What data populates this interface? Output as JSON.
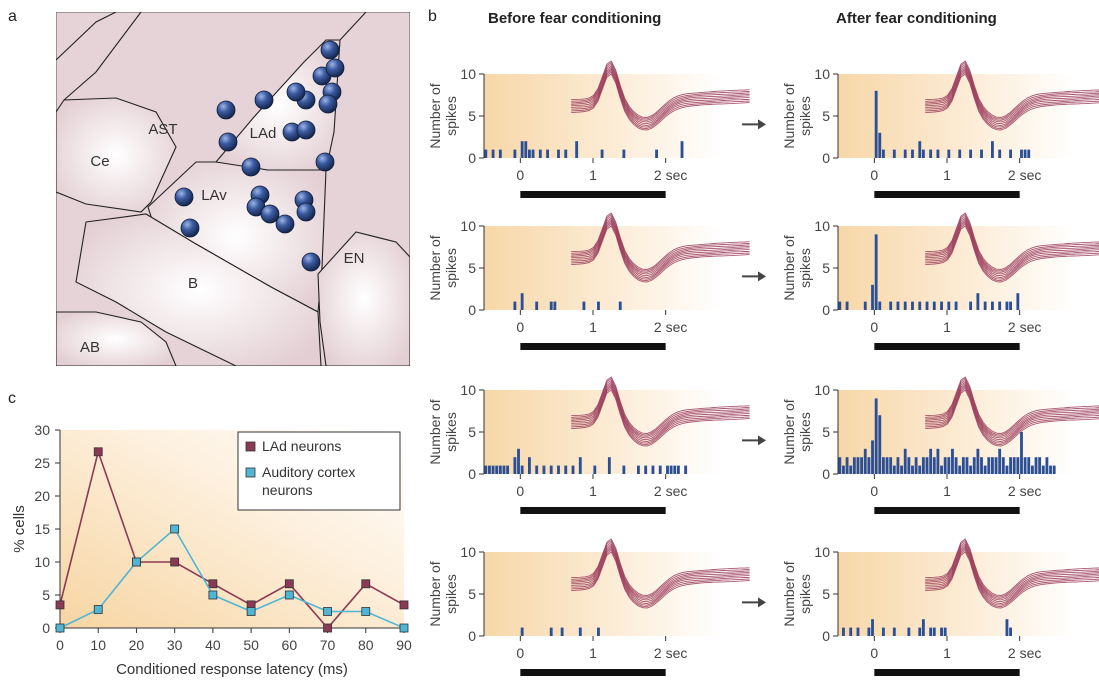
{
  "panels": {
    "a": "a",
    "b": "b",
    "c": "c"
  },
  "colors": {
    "neuron_marker": "#2f4f8f",
    "spike_bar": "#2b4f96",
    "waveform": "#9a3b5a",
    "lad_series": "#8b3a55",
    "auditory_series": "#4fb6d6",
    "bg_warm": "#f8dcb0",
    "brain_fill": "#ead9dc"
  },
  "anatomy": {
    "regions": [
      {
        "key": "ast",
        "label": "AST"
      },
      {
        "key": "lad",
        "label": "LAd"
      },
      {
        "key": "ce",
        "label": "Ce"
      },
      {
        "key": "lav",
        "label": "LAv"
      },
      {
        "key": "b",
        "label": "B"
      },
      {
        "key": "en",
        "label": "EN"
      },
      {
        "key": "ab",
        "label": "AB"
      }
    ],
    "marker_icon": "neuron-dot-icon"
  },
  "histograms": {
    "col_titles": [
      "Before fear conditioning",
      "After fear conditioning"
    ],
    "ylabel_line1": "Number of",
    "ylabel_line2": "spikes",
    "yticks": [
      "0",
      "5",
      "10"
    ],
    "xticks": [
      "0",
      "1",
      "2 sec"
    ],
    "arrow_icon": "right-arrow-icon"
  },
  "chart_data": {
    "type": "line",
    "xlabel": "Conditioned response latency (ms)",
    "ylabel": "% cells",
    "xlim": [
      0,
      90
    ],
    "ylim": [
      0,
      30
    ],
    "x": [
      0,
      10,
      20,
      30,
      40,
      50,
      60,
      70,
      80,
      90
    ],
    "xticks": [
      "0",
      "10",
      "20",
      "30",
      "40",
      "50",
      "60",
      "70",
      "80",
      "90"
    ],
    "yticks": [
      "0",
      "5",
      "10",
      "15",
      "20",
      "25",
      "30"
    ],
    "legend_position": "top-right",
    "series": [
      {
        "name": "LAd neurons",
        "values": [
          3.5,
          26.7,
          10,
          10,
          6.7,
          3.5,
          6.7,
          0,
          6.7,
          3.5
        ]
      },
      {
        "name": "Auditory cortex neurons",
        "values": [
          0,
          2.8,
          10,
          15,
          5,
          2.5,
          5,
          2.5,
          2.5,
          0
        ]
      }
    ]
  }
}
